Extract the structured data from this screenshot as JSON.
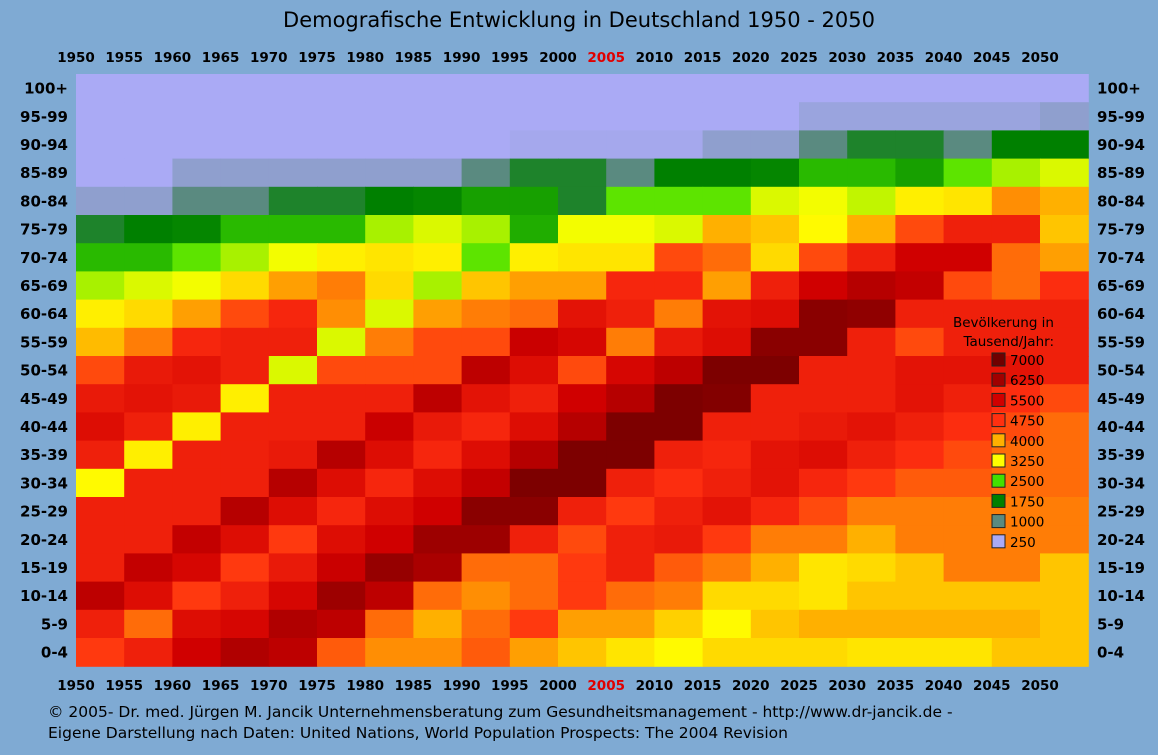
{
  "chart_data": {
    "type": "heatmap",
    "title": "Demografische Entwicklung in Deutschland 1950 - 2050",
    "x": [
      "1950",
      "1955",
      "1960",
      "1965",
      "1970",
      "1975",
      "1980",
      "1985",
      "1990",
      "1995",
      "2000",
      "2005",
      "2010",
      "2015",
      "2020",
      "2025",
      "2030",
      "2035",
      "2040",
      "2045",
      "2050"
    ],
    "highlight_year": "2005",
    "highlight_color": "#e00000",
    "y": [
      "100+",
      "95-99",
      "90-94",
      "85-89",
      "80-84",
      "75-79",
      "70-74",
      "65-69",
      "60-64",
      "55-59",
      "50-54",
      "45-49",
      "40-44",
      "35-39",
      "30-34",
      "25-29",
      "20-24",
      "15-19",
      "10-14",
      "5-9",
      "0-4"
    ],
    "legend": {
      "title_line1": "Bevölkerung in",
      "title_line2": "Tausend/Jahr:",
      "placement": "right",
      "items": [
        {
          "label": "7000",
          "value": 7000,
          "color": "#700000"
        },
        {
          "label": "6250",
          "value": 6250,
          "color": "#a00000"
        },
        {
          "label": "5500",
          "value": 5500,
          "color": "#d00000"
        },
        {
          "label": "4750",
          "value": 4750,
          "color": "#ff3010"
        },
        {
          "label": "4000",
          "value": 4000,
          "color": "#ffb000"
        },
        {
          "label": "3250",
          "value": 3250,
          "color": "#ffff00"
        },
        {
          "label": "2500",
          "value": 2500,
          "color": "#44e000"
        },
        {
          "label": "1750",
          "value": 1750,
          "color": "#008000"
        },
        {
          "label": "1000",
          "value": 1000,
          "color": "#5a8a80"
        },
        {
          "label": "250",
          "value": 250,
          "color": "#aaaaf5"
        }
      ]
    },
    "values": [
      [
        100,
        100,
        100,
        100,
        100,
        100,
        100,
        100,
        100,
        100,
        100,
        100,
        100,
        100,
        100,
        100,
        100,
        100,
        100,
        100,
        100
      ],
      [
        100,
        100,
        100,
        100,
        100,
        100,
        100,
        100,
        100,
        100,
        100,
        100,
        100,
        100,
        100,
        400,
        400,
        400,
        400,
        400,
        500
      ],
      [
        100,
        100,
        100,
        100,
        100,
        100,
        100,
        100,
        100,
        300,
        300,
        300,
        300,
        500,
        500,
        1000,
        1500,
        1500,
        1000,
        1750,
        1750
      ],
      [
        100,
        100,
        500,
        500,
        500,
        500,
        500,
        500,
        1000,
        1500,
        1500,
        1000,
        1750,
        1750,
        1800,
        2200,
        2200,
        2000,
        2600,
        2900,
        3100
      ],
      [
        500,
        500,
        1000,
        1000,
        1500,
        1500,
        1750,
        1800,
        2000,
        2000,
        1500,
        2600,
        2600,
        2600,
        3100,
        3200,
        3000,
        3400,
        3500,
        4200,
        4000
      ],
      [
        1500,
        1750,
        1800,
        2200,
        2200,
        2200,
        2900,
        3100,
        2900,
        2100,
        3200,
        3200,
        3100,
        4000,
        3800,
        3300,
        4000,
        4600,
        5000,
        5000,
        3800
      ],
      [
        2200,
        2200,
        2600,
        2900,
        3200,
        3400,
        3500,
        3400,
        2600,
        3400,
        3500,
        3500,
        4600,
        4400,
        3600,
        4600,
        5000,
        5500,
        5500,
        4400,
        4100
      ],
      [
        2900,
        3100,
        3200,
        3600,
        4100,
        4300,
        3600,
        2900,
        3800,
        4100,
        4100,
        4900,
        4900,
        4100,
        5000,
        5500,
        5900,
        5700,
        4600,
        4400,
        4800
      ],
      [
        3400,
        3600,
        4100,
        4600,
        4900,
        4200,
        3100,
        4100,
        4300,
        4400,
        5200,
        5000,
        4300,
        5200,
        5300,
        6600,
        6500,
        5000,
        5000,
        5000,
        5000
      ],
      [
        3900,
        4300,
        4900,
        5000,
        5000,
        3100,
        4300,
        4600,
        4600,
        5600,
        5400,
        4300,
        5100,
        5300,
        6600,
        6600,
        5000,
        4600,
        5000,
        5000,
        5000
      ],
      [
        4600,
        5100,
        5200,
        5000,
        3100,
        4600,
        4600,
        4600,
        5800,
        5300,
        4600,
        5400,
        5800,
        6800,
        6800,
        5000,
        5000,
        5200,
        5200,
        5200,
        5000
      ],
      [
        5100,
        5200,
        5100,
        3400,
        5000,
        5000,
        5000,
        5800,
        5200,
        5000,
        5500,
        5900,
        6800,
        6700,
        5000,
        5000,
        5000,
        5200,
        5000,
        4800,
        4600
      ],
      [
        5300,
        5000,
        3400,
        5000,
        5000,
        5000,
        5600,
        5100,
        4900,
        5300,
        5900,
        6800,
        6800,
        5000,
        5000,
        5100,
        5200,
        5000,
        4800,
        4600,
        4400
      ],
      [
        5000,
        3400,
        5000,
        5000,
        5100,
        5900,
        5300,
        4900,
        5300,
        5900,
        6800,
        6800,
        5000,
        4900,
        5200,
        5300,
        5000,
        4800,
        4600,
        4400,
        4400
      ],
      [
        3300,
        5000,
        5000,
        5000,
        5900,
        5300,
        4900,
        5300,
        5700,
        6800,
        6800,
        5000,
        4800,
        5000,
        5200,
        4900,
        4700,
        4500,
        4500,
        4400,
        4400
      ],
      [
        5000,
        5000,
        5000,
        5900,
        5300,
        4900,
        5300,
        5500,
        6600,
        6600,
        5000,
        4700,
        5000,
        5200,
        4900,
        4600,
        4300,
        4300,
        4300,
        4300,
        4300
      ],
      [
        5000,
        5000,
        5700,
        5300,
        4700,
        5300,
        5500,
        6300,
        6300,
        5000,
        4600,
        5000,
        5100,
        4700,
        4300,
        4300,
        4000,
        4300,
        4300,
        4300,
        4300
      ],
      [
        5000,
        5700,
        5400,
        4700,
        5100,
        5600,
        6400,
        6100,
        4400,
        4400,
        4700,
        5000,
        4500,
        4300,
        4000,
        3500,
        3600,
        3800,
        4300,
        4300,
        3800
      ],
      [
        5800,
        5300,
        4700,
        5000,
        5400,
        6300,
        5800,
        4400,
        4200,
        4400,
        4700,
        4400,
        4300,
        3600,
        3600,
        3500,
        3800,
        3800,
        3800,
        3800,
        3800
      ],
      [
        5000,
        4400,
        5300,
        5400,
        6000,
        5800,
        4400,
        4000,
        4400,
        4700,
        4100,
        4100,
        3700,
        3300,
        3800,
        4000,
        4000,
        4000,
        4000,
        4000,
        3800
      ],
      [
        4700,
        5000,
        5500,
        6000,
        5800,
        4500,
        4200,
        4200,
        4500,
        4100,
        3800,
        3500,
        3300,
        3600,
        3600,
        3600,
        3500,
        3500,
        3500,
        3800,
        3800
      ]
    ]
  },
  "footer": {
    "line1": "© 2005-  Dr. med. Jürgen M. Jancik Unternehmensberatung zum Gesundheitsmanagement - http://www.dr-jancik.de -",
    "line2": "Eigene Darstellung nach Daten: United Nations, World Population Prospects: The 2004 Revision"
  }
}
